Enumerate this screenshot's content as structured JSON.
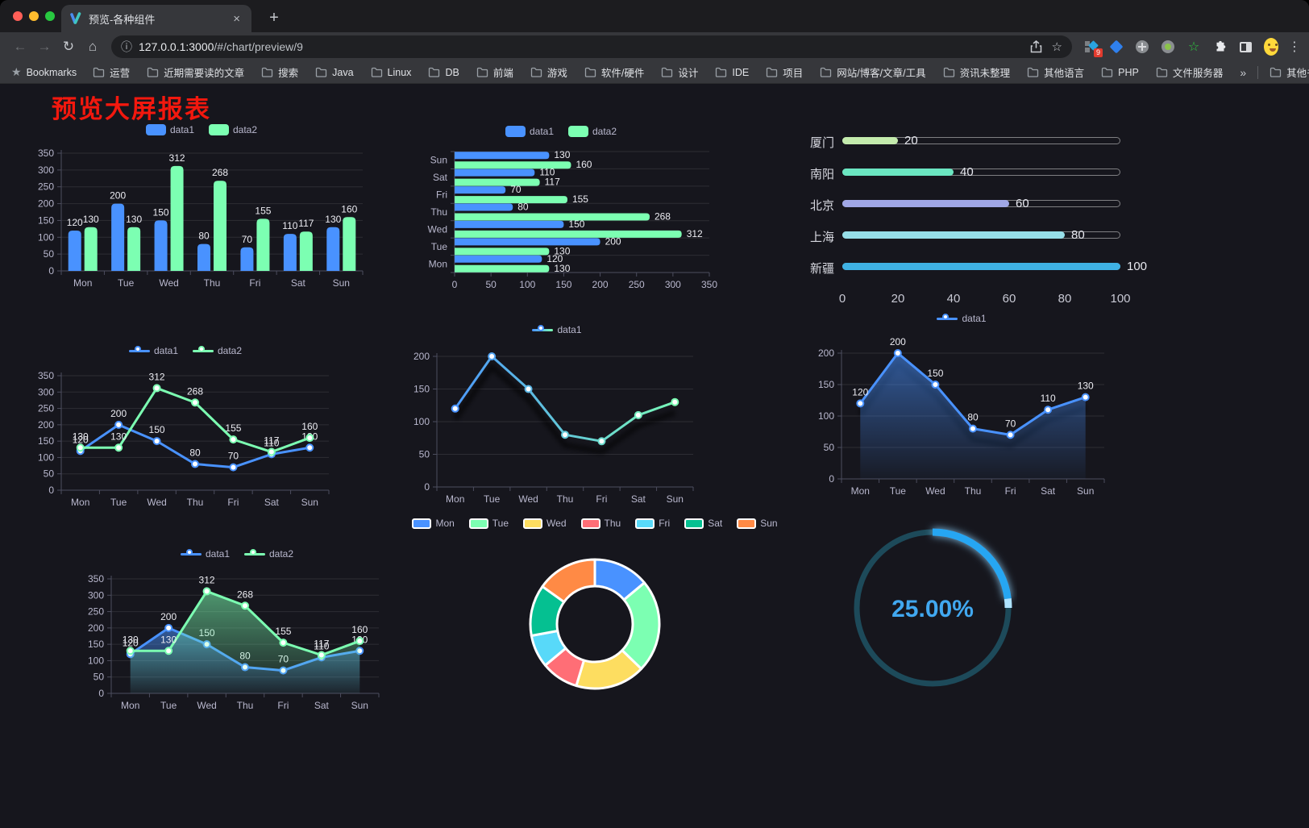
{
  "browser": {
    "traffic_lights": {
      "close": "#ff5f57",
      "minimize": "#febc2e",
      "maximize": "#28c840"
    },
    "tab": {
      "title": "预览-各种组件",
      "close_glyph": "×",
      "new_tab_glyph": "+"
    },
    "nav": {
      "back_glyph": "←",
      "forward_glyph": "→",
      "reload_glyph": "↻",
      "home_glyph": "⌂"
    },
    "omnibox": {
      "info_glyph": "ⓘ",
      "host": "127.0.0.1:3000",
      "path": "/#/chart/preview/9",
      "star_glyph": "☆"
    },
    "extensions": {
      "badge": "9"
    },
    "menu_glyph": "⋮",
    "bookmarks": {
      "label": "Bookmarks",
      "star_glyph": "★",
      "items": [
        "运营",
        "近期需要读的文章",
        "搜索",
        "Java",
        "Linux",
        "DB",
        "前端",
        "游戏",
        "软件/硬件",
        "设计",
        "IDE",
        "项目",
        "网站/博客/文章/工具",
        "资讯未整理",
        "其他语言",
        "PHP",
        "文件服务器"
      ],
      "overflow_glyph": "»",
      "other_label": "其他书签"
    }
  },
  "page": {
    "title": "预览大屏报表"
  },
  "theme": {
    "background": "#16161d",
    "text": "#b9b8ce",
    "value_label": "#ececf2",
    "axis_line": "#4c4d5e",
    "grid_line": "rgba(255,255,255,0.10)"
  },
  "chart_data": [
    {
      "id": "bar-vertical",
      "type": "bar",
      "categories": [
        "Mon",
        "Tue",
        "Wed",
        "Thu",
        "Fri",
        "Sat",
        "Sun"
      ],
      "series": [
        {
          "name": "data1",
          "color": "#4992ff",
          "values": [
            120,
            200,
            150,
            80,
            70,
            110,
            130
          ]
        },
        {
          "name": "data2",
          "color": "#7cffb2",
          "values": [
            130,
            130,
            312,
            268,
            155,
            117,
            160
          ]
        }
      ],
      "ylim": [
        0,
        350
      ],
      "yticks": [
        0,
        50,
        100,
        150,
        200,
        250,
        300,
        350
      ],
      "value_labels": true
    },
    {
      "id": "bar-horizontal",
      "type": "hbar",
      "categories_top_to_bottom": [
        "Sun",
        "Sat",
        "Fri",
        "Thu",
        "Wed",
        "Tue",
        "Mon"
      ],
      "series": [
        {
          "name": "data1",
          "color": "#4992ff",
          "values": [
            130,
            110,
            70,
            80,
            150,
            200,
            120
          ]
        },
        {
          "name": "data2",
          "color": "#7cffb2",
          "values": [
            160,
            117,
            155,
            268,
            312,
            130,
            130
          ]
        }
      ],
      "xlim": [
        0,
        350
      ],
      "xticks": [
        0,
        50,
        100,
        150,
        200,
        250,
        300,
        350
      ],
      "value_labels": true
    },
    {
      "id": "progress-bars",
      "type": "progress",
      "max": 100,
      "axis_ticks": [
        0,
        20,
        40,
        60,
        80,
        100
      ],
      "items": [
        {
          "label": "厦门",
          "value": 20,
          "color": "#c4ebad"
        },
        {
          "label": "南阳",
          "value": 40,
          "color": "#6be6c1"
        },
        {
          "label": "北京",
          "value": 60,
          "color": "#a0a7e6"
        },
        {
          "label": "上海",
          "value": 80,
          "color": "#96dee8"
        },
        {
          "label": "新疆",
          "value": 100,
          "color": "#3fb1e3"
        }
      ]
    },
    {
      "id": "line-two",
      "type": "line",
      "categories": [
        "Mon",
        "Tue",
        "Wed",
        "Thu",
        "Fri",
        "Sat",
        "Sun"
      ],
      "series": [
        {
          "name": "data1",
          "color": "#4992ff",
          "values": [
            120,
            200,
            150,
            80,
            70,
            110,
            130
          ]
        },
        {
          "name": "data2",
          "color": "#7cffb2",
          "values": [
            130,
            130,
            312,
            268,
            155,
            117,
            160
          ]
        }
      ],
      "ylim": [
        0,
        350
      ],
      "yticks": [
        0,
        50,
        100,
        150,
        200,
        250,
        300,
        350
      ],
      "value_labels": true
    },
    {
      "id": "line-gradient",
      "type": "line",
      "categories": [
        "Mon",
        "Tue",
        "Wed",
        "Thu",
        "Fri",
        "Sat",
        "Sun"
      ],
      "series": [
        {
          "name": "data1",
          "gradient": [
            "#4992ff",
            "#7cffb2"
          ],
          "values": [
            120,
            200,
            150,
            80,
            70,
            110,
            130
          ]
        }
      ],
      "ylim": [
        0,
        200
      ],
      "yticks": [
        0,
        50,
        100,
        150,
        200
      ],
      "value_labels": false,
      "shadow": true
    },
    {
      "id": "area-single",
      "type": "line",
      "categories": [
        "Mon",
        "Tue",
        "Wed",
        "Thu",
        "Fri",
        "Sat",
        "Sun"
      ],
      "series": [
        {
          "name": "data1",
          "color": "#4992ff",
          "values": [
            120,
            200,
            150,
            80,
            70,
            110,
            130
          ],
          "area": true
        }
      ],
      "ylim": [
        0,
        200
      ],
      "yticks": [
        0,
        50,
        100,
        150,
        200
      ],
      "value_labels": true,
      "shadow": true
    },
    {
      "id": "area-two",
      "type": "line",
      "categories": [
        "Mon",
        "Tue",
        "Wed",
        "Thu",
        "Fri",
        "Sat",
        "Sun"
      ],
      "series": [
        {
          "name": "data1",
          "color": "#4992ff",
          "values": [
            120,
            200,
            150,
            80,
            70,
            110,
            130
          ],
          "area": true
        },
        {
          "name": "data2",
          "color": "#7cffb2",
          "values": [
            130,
            130,
            312,
            268,
            155,
            117,
            160
          ],
          "area": true
        }
      ],
      "ylim": [
        0,
        350
      ],
      "yticks": [
        0,
        50,
        100,
        150,
        200,
        250,
        300,
        350
      ],
      "value_labels": true
    },
    {
      "id": "donut",
      "type": "pie",
      "items": [
        {
          "label": "Mon",
          "value": 120,
          "color": "#4992ff"
        },
        {
          "label": "Tue",
          "value": 200,
          "color": "#7cffb2"
        },
        {
          "label": "Wed",
          "value": 150,
          "color": "#fddd60"
        },
        {
          "label": "Thu",
          "value": 80,
          "color": "#ff6e76"
        },
        {
          "label": "Fri",
          "value": 70,
          "color": "#58d9f9"
        },
        {
          "label": "Sat",
          "value": 110,
          "color": "#05c091"
        },
        {
          "label": "Sun",
          "value": 130,
          "color": "#ff8a45"
        }
      ]
    },
    {
      "id": "gauge",
      "type": "gauge",
      "value": 25,
      "display": "25.00%",
      "color": "#27a6f2",
      "tip_color": "#aee3ff",
      "track_color": "#1d4a5a",
      "text_color": "#41a8f0"
    }
  ]
}
